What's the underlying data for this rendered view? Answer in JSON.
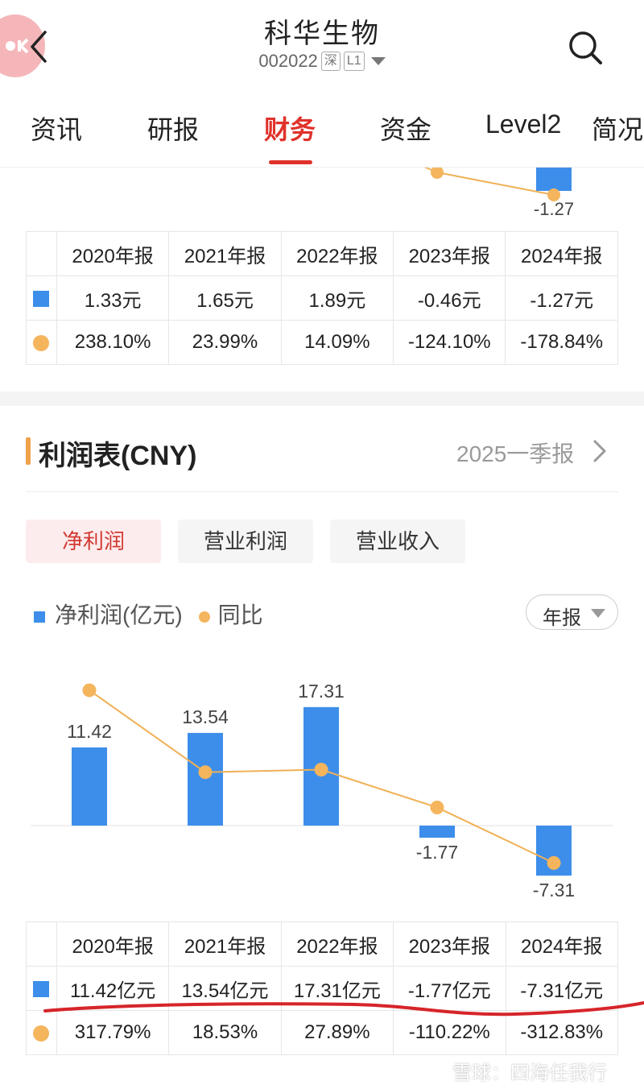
{
  "header": {
    "title": "科华生物",
    "code": "002022",
    "market_tag": "深",
    "level_tag": "L1"
  },
  "tabs": [
    {
      "label": "资讯"
    },
    {
      "label": "研报"
    },
    {
      "label": "财务",
      "active": true
    },
    {
      "label": "资金"
    },
    {
      "label": "Level2"
    },
    {
      "label": "简况"
    }
  ],
  "top_chart": {
    "visible_label": "-1.27"
  },
  "eps_table": {
    "headers": [
      "2020年报",
      "2021年报",
      "2022年报",
      "2023年报",
      "2024年报"
    ],
    "values": [
      "1.33元",
      "1.65元",
      "1.89元",
      "-0.46元",
      "-1.27元"
    ],
    "yoy": [
      "238.10%",
      "23.99%",
      "14.09%",
      "-124.10%",
      "-178.84%"
    ]
  },
  "income_section": {
    "title": "利润表(CNY)",
    "period_link": "2025一季报",
    "metrics": [
      {
        "label": "净利润",
        "active": true
      },
      {
        "label": "营业利润"
      },
      {
        "label": "营业收入"
      }
    ],
    "legend_value": "净利润(亿元)",
    "legend_yoy": "同比",
    "period_select": "年报"
  },
  "chart_data": {
    "type": "bar",
    "categories": [
      "2020年报",
      "2021年报",
      "2022年报",
      "2023年报",
      "2024年报"
    ],
    "series": [
      {
        "name": "净利润(亿元)",
        "type": "bar",
        "values": [
          11.42,
          13.54,
          17.31,
          -1.77,
          -7.31
        ],
        "labels": [
          "11.42",
          "13.54",
          "17.31",
          "-1.77",
          "-7.31"
        ]
      },
      {
        "name": "同比",
        "type": "line",
        "values": [
          317.79,
          18.53,
          27.89,
          -110.22,
          -312.83
        ]
      }
    ],
    "colors": {
      "bar": "#3d8eea",
      "line": "#f0b055",
      "dot": "#f4b55d"
    }
  },
  "profit_table": {
    "headers": [
      "2020年报",
      "2021年报",
      "2022年报",
      "2023年报",
      "2024年报"
    ],
    "values": [
      "11.42亿元",
      "13.54亿元",
      "17.31亿元",
      "-1.77亿元",
      "-7.31亿元"
    ],
    "yoy": [
      "317.79%",
      "18.53%",
      "27.89%",
      "-110.22%",
      "-312.83%"
    ]
  },
  "watermark": "雪球：四海任我行",
  "colors": {
    "accent_red": "#e0322b",
    "positive": "#b0262a",
    "negative": "#1f8a2e",
    "bar_blue": "#3d8eea",
    "dot_orange": "#f4b55d"
  }
}
